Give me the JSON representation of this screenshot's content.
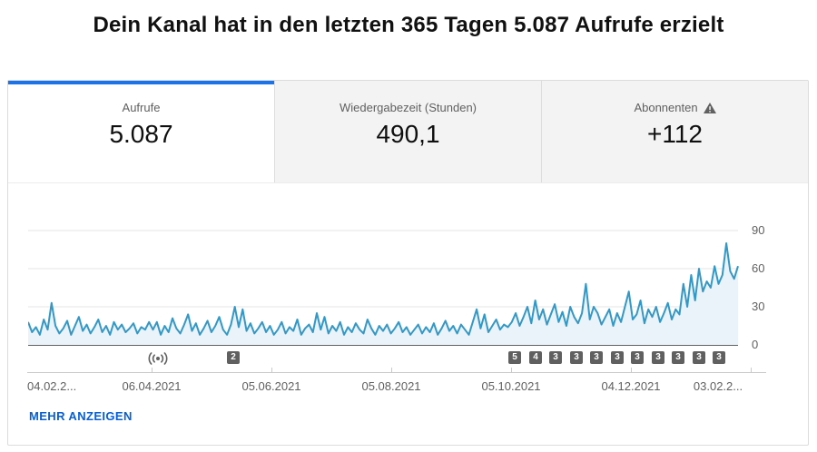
{
  "title": "Dein Kanal hat in den letzten 365 Tagen 5.087 Aufrufe erzielt",
  "tabs": [
    {
      "label": "Aufrufe",
      "value": "5.087",
      "active": true
    },
    {
      "label": "Wiedergabezeit (Stunden)",
      "value": "490,1",
      "active": false
    },
    {
      "label": "Abonnenten",
      "value": "+112",
      "active": false,
      "icon": "warning-triangle-icon"
    }
  ],
  "colors": {
    "active_tab_bar": "#1a73e8",
    "line": "#3398c6",
    "area_fill": "#e9f3f9",
    "link": "#065fd4",
    "badge_bg": "#606060"
  },
  "chart_data": {
    "type": "line",
    "series": [
      {
        "name": "Aufrufe",
        "values": [
          18,
          10,
          14,
          8,
          20,
          12,
          33,
          15,
          9,
          13,
          19,
          8,
          15,
          22,
          11,
          16,
          9,
          14,
          20,
          10,
          15,
          8,
          18,
          12,
          16,
          10,
          13,
          17,
          9,
          14,
          12,
          18,
          12,
          18,
          8,
          15,
          10,
          21,
          13,
          9,
          16,
          24,
          11,
          17,
          8,
          13,
          19,
          10,
          15,
          22,
          12,
          8,
          16,
          30,
          14,
          28,
          11,
          17,
          9,
          13,
          18,
          10,
          15,
          8,
          12,
          18,
          9,
          14,
          11,
          20,
          8,
          13,
          16,
          10,
          25,
          12,
          22,
          9,
          15,
          11,
          18,
          8,
          14,
          10,
          17,
          12,
          9,
          20,
          13,
          8,
          15,
          11,
          16,
          9,
          13,
          18,
          10,
          14,
          8,
          12,
          16,
          9,
          14,
          10,
          17,
          8,
          13,
          19,
          11,
          15,
          9,
          16,
          12,
          8,
          18,
          28,
          13,
          24,
          10,
          15,
          20,
          12,
          16,
          14,
          18,
          25,
          15,
          22,
          30,
          17,
          35,
          20,
          28,
          16,
          24,
          32,
          18,
          26,
          15,
          30,
          22,
          17,
          25,
          48,
          20,
          30,
          25,
          16,
          22,
          28,
          15,
          25,
          18,
          30,
          42,
          20,
          24,
          35,
          17,
          28,
          22,
          30,
          18,
          25,
          33,
          20,
          28,
          24,
          48,
          30,
          55,
          35,
          60,
          42,
          50,
          45,
          62,
          48,
          55,
          80,
          58,
          52,
          62
        ]
      }
    ],
    "x_axis_labels": [
      "04.02.2...",
      "06.04.2021",
      "05.06.2021",
      "05.08.2021",
      "05.10.2021",
      "04.12.2021",
      "03.02.2..."
    ],
    "y_ticks": [
      0,
      30,
      60,
      90
    ],
    "ylim": [
      0,
      90
    ],
    "grid": true,
    "legend": "none",
    "markers": {
      "broadcast_icon": {
        "x": 160
      },
      "badges": [
        {
          "value": "2",
          "x": 249
        },
        {
          "value": "5",
          "x": 559
        },
        {
          "value": "4",
          "x": 582
        },
        {
          "value": "3",
          "x": 604
        },
        {
          "value": "3",
          "x": 627
        },
        {
          "value": "3",
          "x": 649
        },
        {
          "value": "3",
          "x": 672
        },
        {
          "value": "3",
          "x": 694
        },
        {
          "value": "3",
          "x": 717
        },
        {
          "value": "3",
          "x": 739
        },
        {
          "value": "3",
          "x": 762
        },
        {
          "value": "3",
          "x": 784
        }
      ]
    }
  },
  "footer": {
    "more_link": "MEHR ANZEIGEN"
  }
}
